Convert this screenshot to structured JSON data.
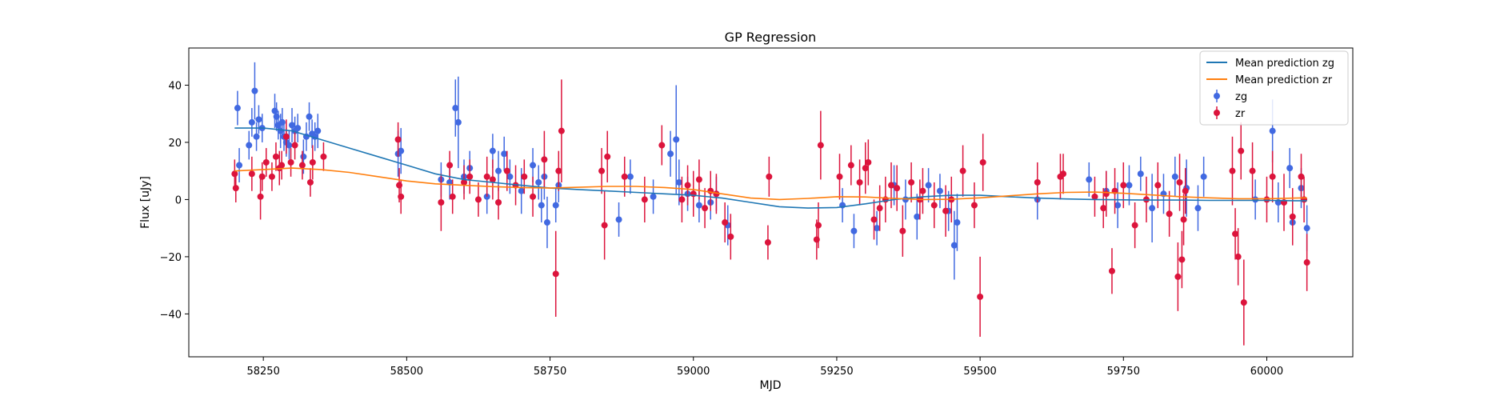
{
  "chart_data": {
    "type": "scatter",
    "title": "GP Regression",
    "xlabel": "MJD",
    "ylabel": "Flux [uJy]",
    "xlim": [
      58120,
      60150
    ],
    "ylim": [
      -55,
      53
    ],
    "x_ticks": [
      58250,
      58500,
      58750,
      59000,
      59250,
      59500,
      59750,
      60000
    ],
    "x_tick_labels": [
      "58250",
      "58500",
      "58750",
      "59000",
      "59250",
      "59500",
      "59750",
      "60000"
    ],
    "y_ticks": [
      -40,
      -20,
      0,
      20,
      40
    ],
    "y_tick_labels": [
      "−40",
      "−20",
      "0",
      "20",
      "40"
    ],
    "grid": false,
    "legend_position": "top-right",
    "legend": [
      "Mean prediction zg",
      "Mean prediction zr",
      "zg",
      "zr"
    ],
    "colors": {
      "zg": "#4169e1",
      "zr": "#dc143c",
      "mean_zg": "#1f77b4",
      "mean_zr": "#ff7f0e"
    },
    "lines": [
      {
        "name": "Mean prediction zg",
        "x": [
          58200,
          58250,
          58300,
          58350,
          58400,
          58450,
          58500,
          58550,
          58600,
          58650,
          58700,
          58750,
          58800,
          58850,
          58900,
          58950,
          59000,
          59050,
          59100,
          59150,
          59200,
          59250,
          59300,
          59350,
          59400,
          59450,
          59500,
          59550,
          59600,
          59650,
          59700,
          59750,
          59800,
          59850,
          59900,
          59950,
          60000,
          60050,
          60070
        ],
        "y": [
          25,
          25,
          24,
          21,
          18,
          15,
          12,
          9,
          7,
          6,
          5,
          4,
          3.5,
          3,
          2.5,
          2,
          1.5,
          0.5,
          -1,
          -2.5,
          -3,
          -2.8,
          -1.5,
          0,
          1,
          1.5,
          1.5,
          1,
          0.5,
          0.2,
          0,
          -0.1,
          -0.2,
          -0.2,
          -0.3,
          -0.3,
          -0.3,
          -0.4,
          -0.4
        ]
      },
      {
        "name": "Mean prediction zr",
        "x": [
          58200,
          58250,
          58300,
          58350,
          58400,
          58450,
          58500,
          58550,
          58600,
          58650,
          58700,
          58750,
          58800,
          58850,
          58900,
          58950,
          59000,
          59050,
          59100,
          59150,
          59200,
          59250,
          59300,
          59350,
          59400,
          59450,
          59500,
          59550,
          59600,
          59650,
          59700,
          59750,
          59800,
          59850,
          59900,
          59950,
          60000,
          60050,
          60070
        ],
        "y": [
          10,
          10.5,
          11,
          10.5,
          9.5,
          8,
          6.5,
          5.5,
          5,
          4.5,
          4.2,
          4,
          4.3,
          4.6,
          4.6,
          4.2,
          3.5,
          2,
          0.5,
          0,
          0.4,
          1,
          0.9,
          0.4,
          0,
          0.1,
          0.6,
          1.3,
          2,
          2.5,
          2.6,
          2.2,
          1.6,
          1,
          0.6,
          0.3,
          0.3,
          0.5,
          0.6
        ]
      }
    ],
    "series": [
      {
        "name": "zg",
        "x": [
          58205,
          58208,
          58225,
          58230,
          58235,
          58238,
          58242,
          58248,
          58270,
          58273,
          58276,
          58280,
          58283,
          58286,
          58290,
          58295,
          58300,
          58305,
          58310,
          58320,
          58325,
          58330,
          58335,
          58340,
          58345,
          58485,
          58490,
          58560,
          58575,
          58585,
          58590,
          58600,
          58610,
          58640,
          58650,
          58660,
          58670,
          58680,
          58700,
          58720,
          58730,
          58735,
          58740,
          58745,
          58760,
          58765,
          58870,
          58890,
          58930,
          58960,
          58970,
          58975,
          58990,
          59010,
          59030,
          59040,
          59060,
          59260,
          59280,
          59320,
          59350,
          59370,
          59390,
          59410,
          59430,
          59445,
          59455,
          59460,
          59600,
          59690,
          59720,
          59740,
          59760,
          59780,
          59800,
          59820,
          59840,
          59860,
          59880,
          59890,
          59980,
          60010,
          60020,
          60040,
          60045,
          60060,
          60070
        ],
        "y": [
          32,
          12,
          19,
          27,
          38,
          22,
          28,
          25,
          31,
          29,
          26,
          24,
          27,
          22,
          20,
          19,
          26,
          24,
          25,
          15,
          22,
          29,
          23,
          22,
          24,
          16,
          17,
          7,
          6,
          32,
          27,
          8,
          11,
          1,
          17,
          10,
          16,
          8,
          3,
          12,
          6,
          -2,
          8,
          -8,
          -2,
          5,
          -7,
          8,
          1,
          16,
          21,
          6,
          2,
          -2,
          -1,
          2,
          -9,
          -2,
          -11,
          -10,
          5,
          0,
          -6,
          5,
          3,
          -4,
          -16,
          -8,
          0,
          7,
          3,
          -2,
          5,
          9,
          -3,
          2,
          8,
          4,
          -3,
          8,
          0,
          24,
          -1,
          11,
          -8,
          4,
          -10
        ],
        "err": [
          6,
          6,
          5,
          5,
          10,
          5,
          5,
          5,
          6,
          5,
          5,
          6,
          5,
          5,
          5,
          5,
          6,
          5,
          5,
          6,
          5,
          5,
          5,
          5,
          6,
          8,
          8,
          6,
          6,
          10,
          16,
          6,
          6,
          6,
          6,
          7,
          6,
          6,
          8,
          6,
          6,
          6,
          8,
          9,
          6,
          6,
          6,
          6,
          6,
          8,
          19,
          8,
          6,
          6,
          6,
          6,
          7,
          6,
          6,
          6,
          7,
          7,
          8,
          6,
          6,
          7,
          12,
          10,
          7,
          6,
          7,
          8,
          7,
          6,
          12,
          7,
          7,
          10,
          8,
          7,
          7,
          11,
          7,
          7,
          8,
          7,
          8
        ]
      },
      {
        "name": "zr",
        "x": [
          58200,
          58202,
          58230,
          58245,
          58248,
          58255,
          58265,
          58272,
          58278,
          58282,
          58290,
          58298,
          58305,
          58318,
          58332,
          58336,
          58355,
          58485,
          58487,
          58490,
          58560,
          58575,
          58580,
          58600,
          58610,
          58625,
          58640,
          58650,
          58660,
          58675,
          58690,
          58705,
          58720,
          58740,
          58760,
          58765,
          58770,
          58840,
          58845,
          58850,
          58880,
          58915,
          58945,
          58980,
          58990,
          59000,
          59010,
          59020,
          59030,
          59040,
          59055,
          59065,
          59130,
          59132,
          59215,
          59218,
          59222,
          59255,
          59275,
          59290,
          59300,
          59305,
          59315,
          59325,
          59335,
          59345,
          59355,
          59365,
          59380,
          59395,
          59400,
          59420,
          59440,
          59450,
          59470,
          59490,
          59500,
          59505,
          59600,
          59640,
          59645,
          59700,
          59715,
          59720,
          59730,
          59735,
          59750,
          59770,
          59790,
          59810,
          59830,
          59845,
          59848,
          59852,
          59855,
          59858,
          59940,
          59945,
          59950,
          59955,
          59960,
          59975,
          60000,
          60010,
          60030,
          60045,
          60060,
          60065,
          60070
        ],
        "y": [
          9,
          4,
          9,
          1,
          8,
          13,
          8,
          15,
          11,
          12,
          22,
          13,
          19,
          12,
          6,
          13,
          15,
          21,
          5,
          1,
          -1,
          12,
          1,
          6,
          8,
          0,
          8,
          7,
          -1,
          10,
          5,
          8,
          1,
          14,
          -26,
          10,
          24,
          10,
          -9,
          15,
          8,
          0,
          19,
          0,
          5,
          2,
          7,
          -3,
          3,
          2,
          -8,
          -13,
          -15,
          8,
          -14,
          -9,
          19,
          8,
          12,
          6,
          11,
          13,
          -7,
          -3,
          0,
          5,
          4,
          -11,
          6,
          0,
          3,
          -2,
          -4,
          0,
          10,
          -2,
          -34,
          13,
          6,
          8,
          9,
          1,
          -3,
          2,
          -25,
          3,
          5,
          -9,
          0,
          5,
          -5,
          -27,
          6,
          -21,
          -7,
          3,
          10,
          -12,
          -20,
          17,
          -36,
          10,
          0,
          8,
          -1,
          -6,
          8,
          0,
          -22
        ],
        "err": [
          5,
          5,
          6,
          8,
          5,
          5,
          5,
          5,
          6,
          5,
          6,
          5,
          5,
          5,
          5,
          6,
          5,
          6,
          6,
          6,
          10,
          5,
          6,
          6,
          6,
          6,
          7,
          7,
          6,
          7,
          7,
          6,
          7,
          10,
          15,
          7,
          18,
          8,
          12,
          9,
          7,
          8,
          7,
          8,
          7,
          8,
          7,
          7,
          7,
          7,
          7,
          8,
          6,
          7,
          7,
          8,
          12,
          8,
          7,
          8,
          9,
          8,
          7,
          8,
          8,
          8,
          8,
          9,
          7,
          7,
          8,
          8,
          9,
          8,
          9,
          8,
          14,
          10,
          7,
          8,
          7,
          7,
          7,
          8,
          8,
          8,
          8,
          8,
          8,
          8,
          8,
          12,
          10,
          10,
          9,
          8,
          12,
          9,
          10,
          10,
          15,
          10,
          8,
          9,
          10,
          10,
          8,
          8,
          10
        ]
      }
    ]
  }
}
